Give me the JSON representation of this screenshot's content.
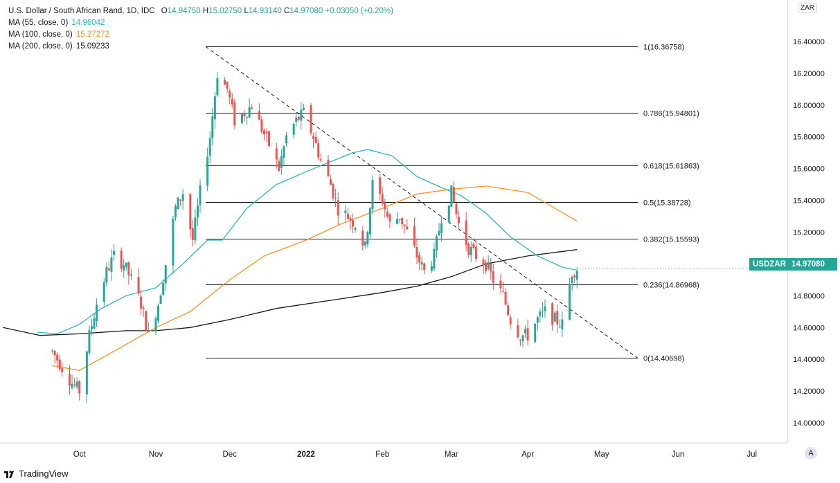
{
  "legend": {
    "title": "U.S. Dollar / South African Rand, 1D, IDC",
    "ohlc": {
      "o_label": "O",
      "o": "14.94750",
      "h_label": "H",
      "h": "15.02750",
      "l_label": "L",
      "l": "14.93140",
      "c_label": "C",
      "c": "14.97080",
      "change": "+0.03050 (+0.20%)"
    },
    "ma": [
      {
        "label": "MA (55, close, 0)",
        "value": "14.96042",
        "color": "#29b6c8"
      },
      {
        "label": "MA (100, close, 0)",
        "value": "15.27272",
        "color": "#f7931e"
      },
      {
        "label": "MA (200, close, 0)",
        "value": "15.09233",
        "color": "#131722"
      }
    ]
  },
  "currency_label": "ZAR",
  "symbol_tag": "USDZAR",
  "price_tag": "14.97080",
  "auto_button": "A",
  "branding": "TradingView",
  "colors": {
    "up": "#26a69a",
    "down": "#ef5350",
    "ma55": "#29b6c8",
    "ma100": "#f7931e",
    "ma200": "#131722",
    "fib": "#131722"
  },
  "chart_data": {
    "type": "candlestick",
    "symbol": "USDZAR",
    "interval": "1D",
    "y_axis": {
      "min": 13.9,
      "max": 16.6,
      "ticks": [
        "16.40000",
        "16.20000",
        "16.00000",
        "15.80000",
        "15.60000",
        "15.40000",
        "15.20000",
        "15.00000",
        "14.80000",
        "14.60000",
        "14.40000",
        "14.20000",
        "14.00000"
      ]
    },
    "x_axis": {
      "ticks": [
        "Oct",
        "Nov",
        "Dec",
        "2022",
        "Feb",
        "Mar",
        "Apr",
        "May",
        "Jun",
        "Jul"
      ]
    },
    "fibonacci": [
      {
        "label": "1(16.36758)",
        "value": 16.36758
      },
      {
        "label": "0.786(15.94801)",
        "value": 15.94801
      },
      {
        "label": "0.618(15.61863)",
        "value": 15.61863
      },
      {
        "label": "0.5(15.38728)",
        "value": 15.38728
      },
      {
        "label": "0.382(15.15593)",
        "value": 15.15593
      },
      {
        "label": "0.236(14.86968)",
        "value": 14.86968
      },
      {
        "label": "0(14.40698)",
        "value": 14.40698
      }
    ],
    "trendline": {
      "from": {
        "date": "2021-11-26",
        "value": 16.36758
      },
      "to": {
        "date": "2022-05-21",
        "value": 14.40698
      }
    },
    "close_path": [
      [
        "2021-09-20",
        14.45
      ],
      [
        "2021-09-24",
        14.35
      ],
      [
        "2021-09-28",
        14.25
      ],
      [
        "2021-10-01",
        14.2
      ],
      [
        "2021-10-05",
        14.55
      ],
      [
        "2021-10-08",
        14.75
      ],
      [
        "2021-10-12",
        14.95
      ],
      [
        "2021-10-15",
        15.05
      ],
      [
        "2021-10-19",
        15.0
      ],
      [
        "2021-10-22",
        14.9
      ],
      [
        "2021-10-26",
        14.75
      ],
      [
        "2021-10-29",
        14.55
      ],
      [
        "2021-11-02",
        14.75
      ],
      [
        "2021-11-05",
        15.0
      ],
      [
        "2021-11-09",
        15.35
      ],
      [
        "2021-11-12",
        15.45
      ],
      [
        "2021-11-16",
        15.15
      ],
      [
        "2021-11-19",
        15.45
      ],
      [
        "2021-11-23",
        15.8
      ],
      [
        "2021-11-26",
        16.2
      ],
      [
        "2021-11-30",
        16.1
      ],
      [
        "2021-12-03",
        15.9
      ],
      [
        "2021-12-07",
        15.95
      ],
      [
        "2021-12-10",
        16.0
      ],
      [
        "2021-12-14",
        15.85
      ],
      [
        "2021-12-17",
        15.75
      ],
      [
        "2021-12-21",
        15.6
      ],
      [
        "2021-12-24",
        15.8
      ],
      [
        "2021-12-28",
        15.9
      ],
      [
        "2021-12-31",
        15.95
      ],
      [
        "2022-01-04",
        15.8
      ],
      [
        "2022-01-07",
        15.65
      ],
      [
        "2022-01-11",
        15.5
      ],
      [
        "2022-01-14",
        15.35
      ],
      [
        "2022-01-18",
        15.3
      ],
      [
        "2022-01-21",
        15.25
      ],
      [
        "2022-01-25",
        15.1
      ],
      [
        "2022-01-28",
        15.5
      ],
      [
        "2022-02-01",
        15.4
      ],
      [
        "2022-02-04",
        15.25
      ],
      [
        "2022-02-08",
        15.3
      ],
      [
        "2022-02-11",
        15.2
      ],
      [
        "2022-02-15",
        15.05
      ],
      [
        "2022-02-18",
        14.95
      ],
      [
        "2022-02-22",
        15.05
      ],
      [
        "2022-02-25",
        15.3
      ],
      [
        "2022-03-01",
        15.45
      ],
      [
        "2022-03-04",
        15.25
      ],
      [
        "2022-03-08",
        15.1
      ],
      [
        "2022-03-11",
        15.05
      ],
      [
        "2022-03-15",
        15.0
      ],
      [
        "2022-03-18",
        14.9
      ],
      [
        "2022-03-22",
        14.8
      ],
      [
        "2022-03-25",
        14.65
      ],
      [
        "2022-03-29",
        14.55
      ],
      [
        "2022-04-01",
        14.55
      ],
      [
        "2022-04-05",
        14.65
      ],
      [
        "2022-04-08",
        14.7
      ],
      [
        "2022-04-12",
        14.65
      ],
      [
        "2022-04-15",
        14.62
      ],
      [
        "2022-04-19",
        14.95
      ],
      [
        "2022-04-21",
        14.9708
      ]
    ],
    "ma55": [
      [
        "2021-09-14",
        14.57
      ],
      [
        "2021-09-22",
        14.56
      ],
      [
        "2021-10-01",
        14.62
      ],
      [
        "2021-10-10",
        14.72
      ],
      [
        "2021-10-20",
        14.8
      ],
      [
        "2021-11-01",
        14.85
      ],
      [
        "2021-11-12",
        15.0
      ],
      [
        "2021-11-22",
        15.15
      ],
      [
        "2021-11-28",
        15.15
      ],
      [
        "2021-12-08",
        15.35
      ],
      [
        "2021-12-20",
        15.5
      ],
      [
        "2022-01-01",
        15.58
      ],
      [
        "2022-01-12",
        15.65
      ],
      [
        "2022-01-20",
        15.7
      ],
      [
        "2022-01-26",
        15.72
      ],
      [
        "2022-02-05",
        15.68
      ],
      [
        "2022-02-15",
        15.55
      ],
      [
        "2022-02-25",
        15.48
      ],
      [
        "2022-03-05",
        15.43
      ],
      [
        "2022-03-15",
        15.32
      ],
      [
        "2022-03-25",
        15.17
      ],
      [
        "2022-04-05",
        15.05
      ],
      [
        "2022-04-15",
        14.98
      ],
      [
        "2022-04-21",
        14.96
      ]
    ],
    "ma100": [
      [
        "2021-09-20",
        14.36
      ],
      [
        "2021-10-01",
        14.33
      ],
      [
        "2021-10-15",
        14.45
      ],
      [
        "2021-11-01",
        14.6
      ],
      [
        "2021-11-15",
        14.7
      ],
      [
        "2021-12-01",
        14.9
      ],
      [
        "2021-12-15",
        15.05
      ],
      [
        "2022-01-01",
        15.15
      ],
      [
        "2022-01-15",
        15.25
      ],
      [
        "2022-02-01",
        15.35
      ],
      [
        "2022-02-15",
        15.44
      ],
      [
        "2022-03-01",
        15.47
      ],
      [
        "2022-03-15",
        15.49
      ],
      [
        "2022-04-01",
        15.45
      ],
      [
        "2022-04-12",
        15.35
      ],
      [
        "2022-04-21",
        15.27
      ]
    ],
    "ma200": [
      [
        "2021-08-31",
        14.6
      ],
      [
        "2021-09-15",
        14.55
      ],
      [
        "2021-10-01",
        14.56
      ],
      [
        "2021-10-20",
        14.58
      ],
      [
        "2021-11-01",
        14.58
      ],
      [
        "2021-11-15",
        14.6
      ],
      [
        "2021-12-01",
        14.65
      ],
      [
        "2021-12-20",
        14.72
      ],
      [
        "2022-01-15",
        14.78
      ],
      [
        "2022-02-01",
        14.82
      ],
      [
        "2022-02-15",
        14.86
      ],
      [
        "2022-03-01",
        14.92
      ],
      [
        "2022-03-15",
        15.0
      ],
      [
        "2022-04-01",
        15.05
      ],
      [
        "2022-04-21",
        15.09
      ]
    ]
  }
}
